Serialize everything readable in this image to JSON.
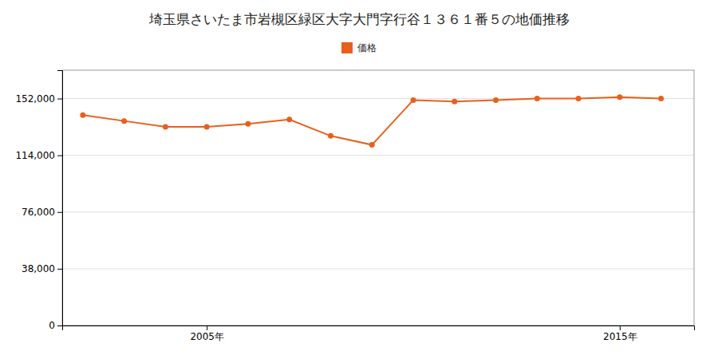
{
  "chart_data": {
    "type": "line",
    "title": "埼玉県さいたま市岩槻区緑区大字大門字行谷１３６１番５の地価推移",
    "x": [
      2002,
      2003,
      2004,
      2005,
      2006,
      2007,
      2008,
      2009,
      2010,
      2011,
      2012,
      2013,
      2014,
      2015,
      2016
    ],
    "series": [
      {
        "name": "価格",
        "color": "#e8601c",
        "values": [
          141000,
          137000,
          133000,
          133000,
          135000,
          138000,
          127000,
          121000,
          151000,
          150000,
          151000,
          152000,
          152000,
          153000,
          152000
        ]
      }
    ],
    "xlim": [
      2001.5,
      2016.8
    ],
    "xticks": [
      {
        "value": 2005,
        "label": "2005年"
      },
      {
        "value": 2015,
        "label": "2015年"
      }
    ],
    "ylim": [
      0,
      171000
    ],
    "yticks": [
      0,
      {
        "value": 38000,
        "label": "38,000"
      },
      {
        "value": 76000,
        "label": "76,000"
      },
      {
        "value": 114000,
        "label": "114,000"
      },
      {
        "value": 152000,
        "label": "152,000"
      }
    ],
    "grid": true,
    "legend": "top",
    "marker": "circle"
  }
}
